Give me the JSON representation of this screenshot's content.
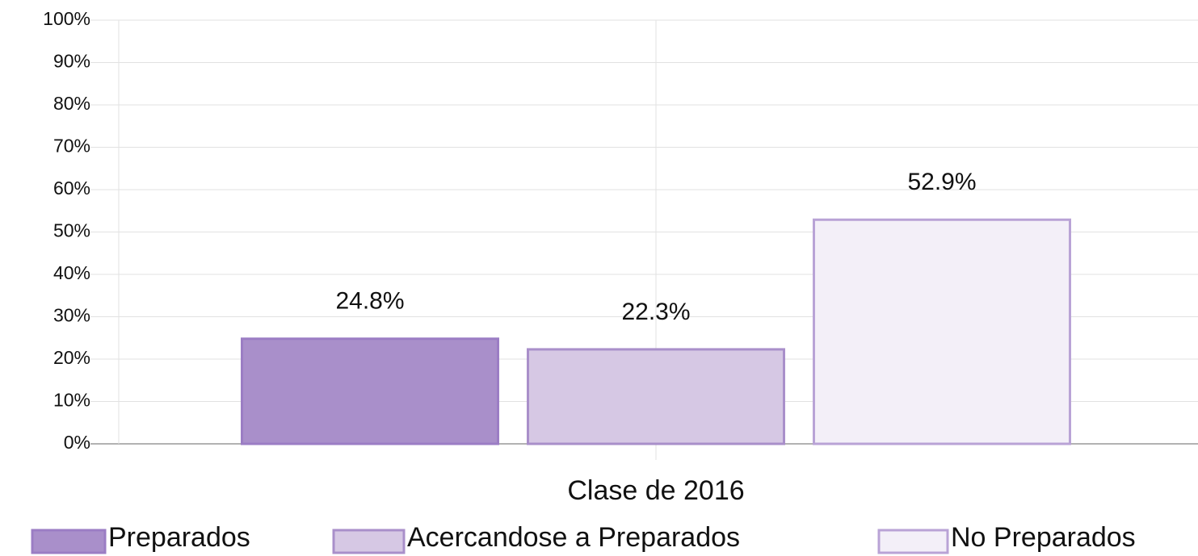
{
  "chart_data": {
    "type": "bar",
    "categories": [
      "Clase de 2016"
    ],
    "series": [
      {
        "name": "Preparados",
        "color": "#a98fca",
        "values": [
          24.8
        ],
        "value_labels": [
          "24.8%"
        ]
      },
      {
        "name": "Acercandose a Preparados",
        "color": "#d6c8e4",
        "values": [
          22.3
        ],
        "value_labels": [
          "22.3%"
        ]
      },
      {
        "name": "No Preparados",
        "color": "#f3eff8",
        "values": [
          52.9
        ],
        "value_labels": [
          "52.9%"
        ]
      }
    ],
    "ylim": [
      0,
      100
    ],
    "yticks": [
      {
        "value": 0,
        "label": "0%"
      },
      {
        "value": 10,
        "label": "10%"
      },
      {
        "value": 20,
        "label": "20%"
      },
      {
        "value": 30,
        "label": "30%"
      },
      {
        "value": 40,
        "label": "40%"
      },
      {
        "value": 50,
        "label": "50%"
      },
      {
        "value": 60,
        "label": "60%"
      },
      {
        "value": 70,
        "label": "70%"
      },
      {
        "value": 80,
        "label": "80%"
      },
      {
        "value": 90,
        "label": "90%"
      },
      {
        "value": 100,
        "label": "100%"
      }
    ],
    "grid": true,
    "legend": "bottom"
  }
}
